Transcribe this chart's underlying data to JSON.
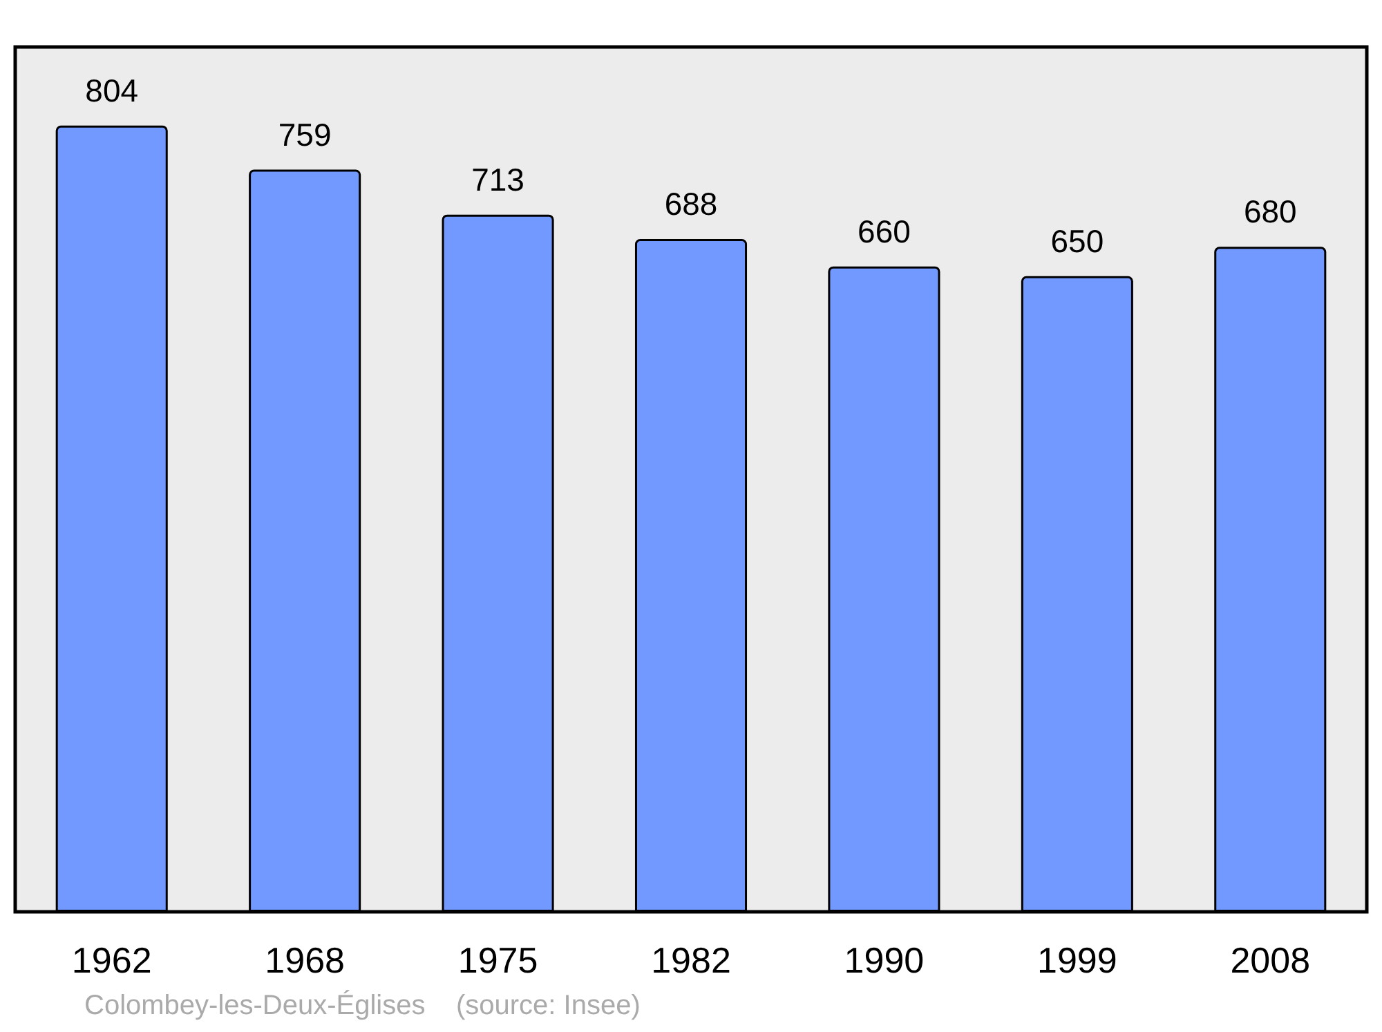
{
  "chart_data": {
    "type": "bar",
    "categories": [
      "1962",
      "1968",
      "1975",
      "1982",
      "1990",
      "1999",
      "2008"
    ],
    "values": [
      804,
      759,
      713,
      688,
      660,
      650,
      680
    ],
    "color": "#7299ff",
    "data_labels": true,
    "annotations": [
      "Colombey-les-Deux-Églises    (source: Insee)"
    ]
  }
}
